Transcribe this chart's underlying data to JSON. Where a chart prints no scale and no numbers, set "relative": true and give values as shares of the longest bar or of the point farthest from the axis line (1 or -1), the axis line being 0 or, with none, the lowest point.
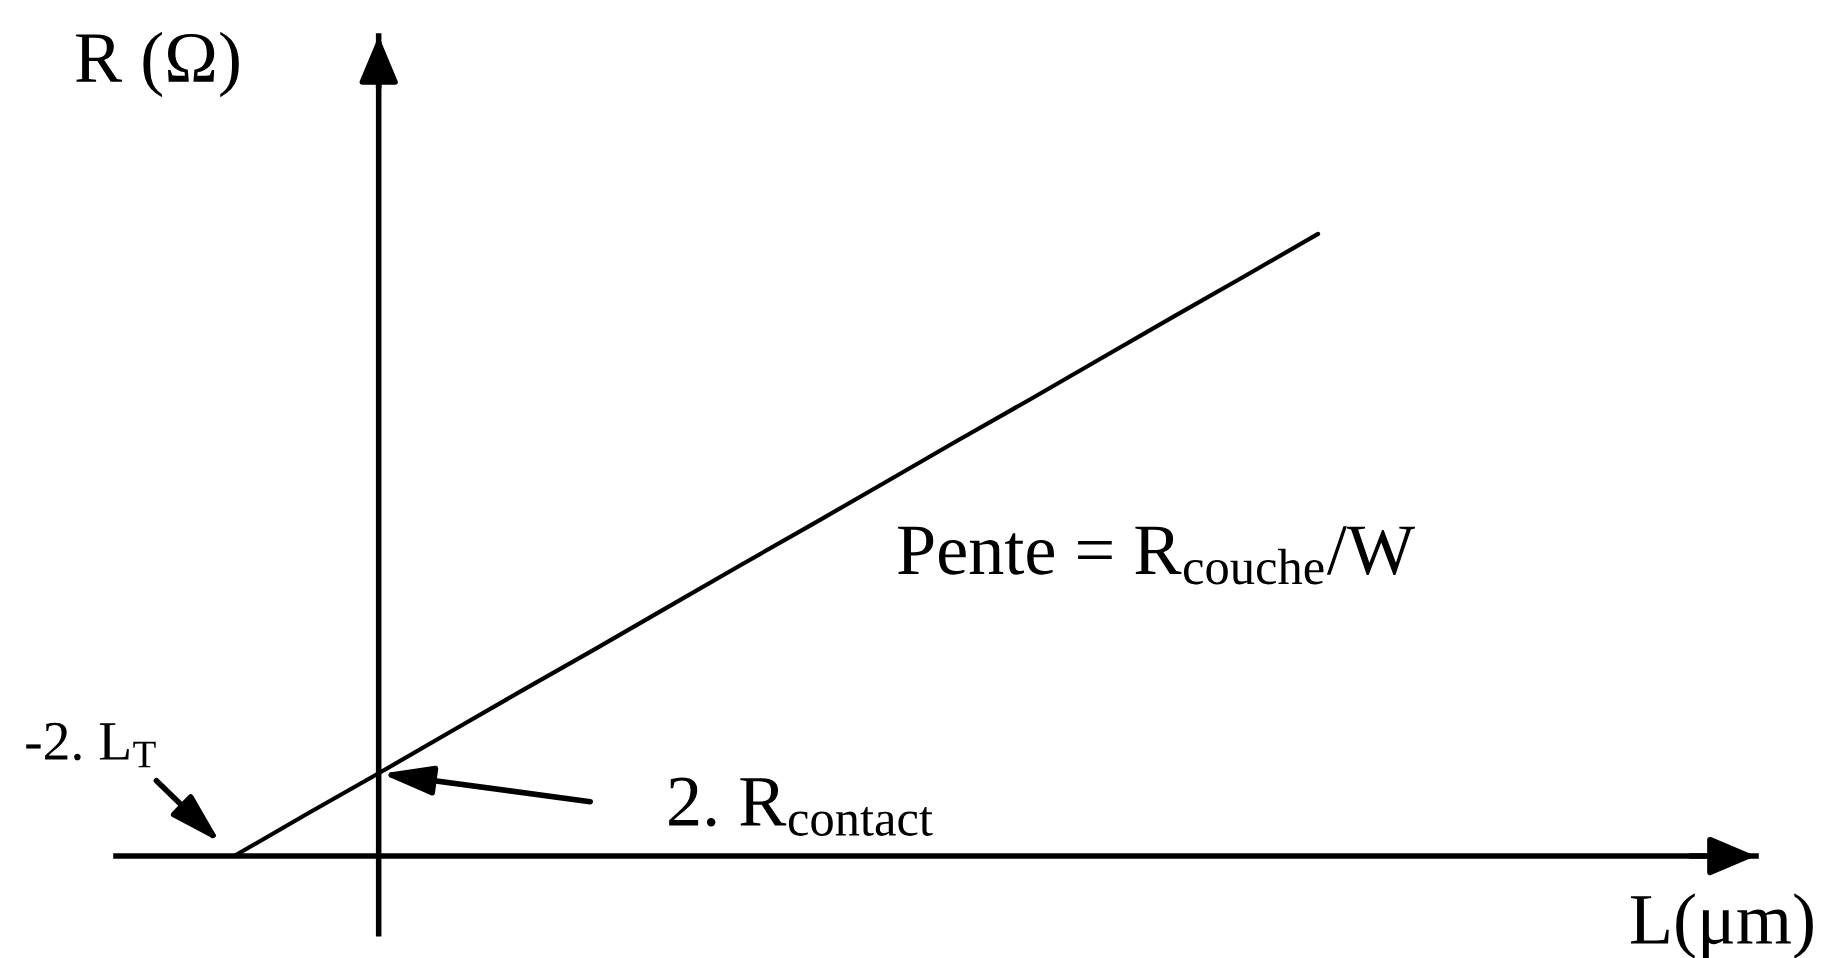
{
  "chart_data": {
    "type": "line",
    "xlabel": "L(μm)",
    "ylabel": "R (Ω)",
    "categories": [
      null,
      null,
      null,
      null,
      null,
      null,
      null,
      null,
      null,
      null,
      null,
      null,
      null,
      null,
      null,
      null
    ],
    "values": [
      0,
      0.067,
      0.133,
      0.2,
      0.267,
      0.333,
      0.4,
      0.467,
      0.533,
      0.6,
      0.667,
      0.733,
      0.8,
      0.867,
      0.933,
      1
    ],
    "color": "#000000",
    "relative": true,
    "annotations": [
      "-2. L$_{T}$",
      "2. R$_{contact}$",
      "Pente = R$_{couche}$/W"
    ]
  }
}
